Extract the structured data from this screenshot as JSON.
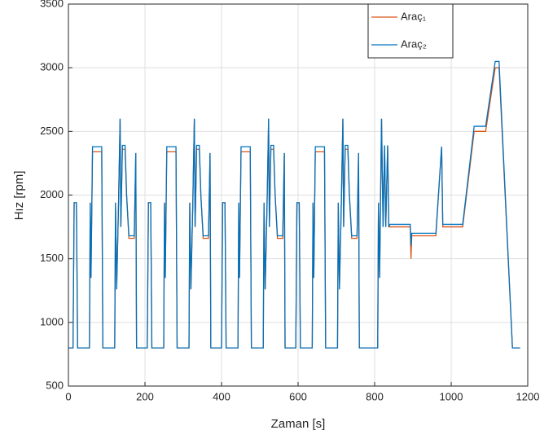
{
  "chart_data": {
    "type": "line",
    "xlabel": "Zaman [s]",
    "ylabel": "Hız [rpm]",
    "x": [
      0,
      12,
      15,
      21,
      24,
      55,
      57,
      59,
      63,
      87,
      90,
      121,
      123,
      126,
      131,
      135,
      137,
      141,
      148,
      152,
      158,
      172,
      176,
      178,
      194,
      206,
      209,
      215,
      218,
      249,
      251,
      253,
      257,
      281,
      284,
      315,
      317,
      320,
      325,
      329,
      331,
      335,
      342,
      346,
      352,
      366,
      370,
      372,
      388,
      400,
      403,
      409,
      412,
      443,
      445,
      447,
      451,
      475,
      478,
      509,
      511,
      514,
      519,
      523,
      525,
      529,
      536,
      540,
      546,
      560,
      564,
      566,
      582,
      594,
      597,
      603,
      606,
      637,
      639,
      641,
      645,
      669,
      672,
      703,
      705,
      708,
      713,
      717,
      719,
      723,
      730,
      734,
      740,
      754,
      758,
      760,
      808,
      810,
      813,
      818,
      822,
      826,
      829,
      834,
      837,
      840,
      893,
      895,
      897,
      960,
      975,
      978,
      1030,
      1060,
      1090,
      1115,
      1125,
      1160,
      1180
    ],
    "series": [
      {
        "name": "Araç₁",
        "color": "#d95319",
        "values": [
          800,
          800,
          1940,
          1940,
          800,
          800,
          1940,
          1350,
          2340,
          2340,
          800,
          800,
          1940,
          1260,
          1940,
          2600,
          1750,
          2360,
          2360,
          2000,
          1660,
          1660,
          2330,
          800,
          800,
          800,
          1940,
          1940,
          800,
          800,
          1940,
          1350,
          2340,
          2340,
          800,
          800,
          1940,
          1260,
          1940,
          2600,
          1750,
          2360,
          2360,
          2000,
          1660,
          1660,
          2330,
          800,
          800,
          800,
          1940,
          1940,
          800,
          800,
          1940,
          1350,
          2340,
          2340,
          800,
          800,
          1940,
          1260,
          1940,
          2600,
          1750,
          2360,
          2360,
          2000,
          1660,
          1660,
          2330,
          800,
          800,
          800,
          1940,
          1940,
          800,
          800,
          1940,
          1350,
          2340,
          2340,
          800,
          800,
          1940,
          1260,
          1940,
          2600,
          1750,
          2360,
          2360,
          2000,
          1660,
          1660,
          2330,
          800,
          800,
          1940,
          1350,
          2600,
          1750,
          2390,
          1750,
          2390,
          1750,
          1750,
          1750,
          1500,
          1680,
          1680,
          2380,
          1750,
          1750,
          2500,
          2500,
          3000,
          3000,
          800,
          800
        ]
      },
      {
        "name": "Araç₂",
        "color": "#0072bd",
        "values": [
          800,
          800,
          1940,
          1940,
          800,
          800,
          1940,
          1350,
          2380,
          2380,
          800,
          800,
          1940,
          1260,
          1940,
          2600,
          1750,
          2390,
          2390,
          2000,
          1680,
          1680,
          2330,
          800,
          800,
          800,
          1940,
          1940,
          800,
          800,
          1940,
          1350,
          2380,
          2380,
          800,
          800,
          1940,
          1260,
          1940,
          2600,
          1750,
          2390,
          2390,
          2000,
          1680,
          1680,
          2330,
          800,
          800,
          800,
          1940,
          1940,
          800,
          800,
          1940,
          1350,
          2380,
          2380,
          800,
          800,
          1940,
          1260,
          1940,
          2600,
          1750,
          2390,
          2390,
          2000,
          1680,
          1680,
          2330,
          800,
          800,
          800,
          1940,
          1940,
          800,
          800,
          1940,
          1350,
          2380,
          2380,
          800,
          800,
          1940,
          1260,
          1940,
          2600,
          1750,
          2390,
          2390,
          2000,
          1680,
          1680,
          2330,
          800,
          800,
          1940,
          1350,
          2600,
          1750,
          2390,
          1750,
          2390,
          1750,
          1770,
          1770,
          1600,
          1700,
          1700,
          2380,
          1770,
          1770,
          2540,
          2540,
          3050,
          3050,
          800,
          800
        ]
      }
    ],
    "xlim": [
      0,
      1200
    ],
    "xticks": [
      0,
      200,
      400,
      600,
      800,
      1000,
      1200
    ],
    "ylim": [
      500,
      3500
    ],
    "yticks": [
      500,
      1000,
      1500,
      2000,
      2500,
      3000,
      3500
    ],
    "grid": true,
    "legend": "top-right"
  }
}
